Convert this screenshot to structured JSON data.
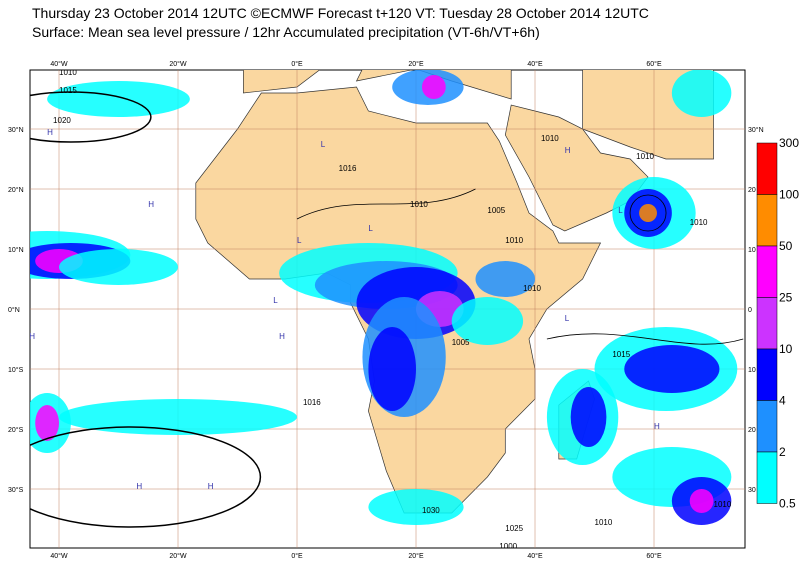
{
  "header": {
    "title": "Thursday 23 October 2014 12UTC ©ECMWF Forecast t+120 VT: Tuesday 28 October 2014 12UTC",
    "subtitle": "Surface: Mean sea level pressure / 12hr Accumulated precipitation (VT-6h/VT+6h)"
  },
  "map": {
    "lon_labels": [
      "40°W",
      "20°W",
      "0°E",
      "20°E",
      "40°E",
      "60°E"
    ],
    "lat_labels_left": [
      "30°N",
      "20°N",
      "10°N",
      "0°N",
      "10°S",
      "20°S",
      "30°S"
    ],
    "lat_labels_right": [
      "30°N",
      "20",
      "10",
      "0",
      "10",
      "20",
      "30"
    ],
    "isobar_labels": [
      "1015",
      "1020",
      "1016",
      "1010",
      "1010",
      "1005",
      "1010",
      "1010",
      "1005",
      "1016",
      "1010",
      "1010",
      "1010",
      "1015",
      "1025",
      "1030",
      "1010",
      "1000",
      "1010"
    ],
    "pressure_centers": [
      "H",
      "H",
      "L",
      "L",
      "L",
      "H",
      "L",
      "H",
      "H",
      "L",
      "H",
      "H",
      "L",
      "H"
    ]
  },
  "legend": {
    "labels": [
      "300",
      "100",
      "50",
      "25",
      "10",
      "4",
      "2",
      "0.5"
    ],
    "colors": [
      "#ff0000",
      "#ff8c00",
      "#ff00ff",
      "#cc33ff",
      "#0000ff",
      "#1e90ff",
      "#00ffff"
    ]
  }
}
